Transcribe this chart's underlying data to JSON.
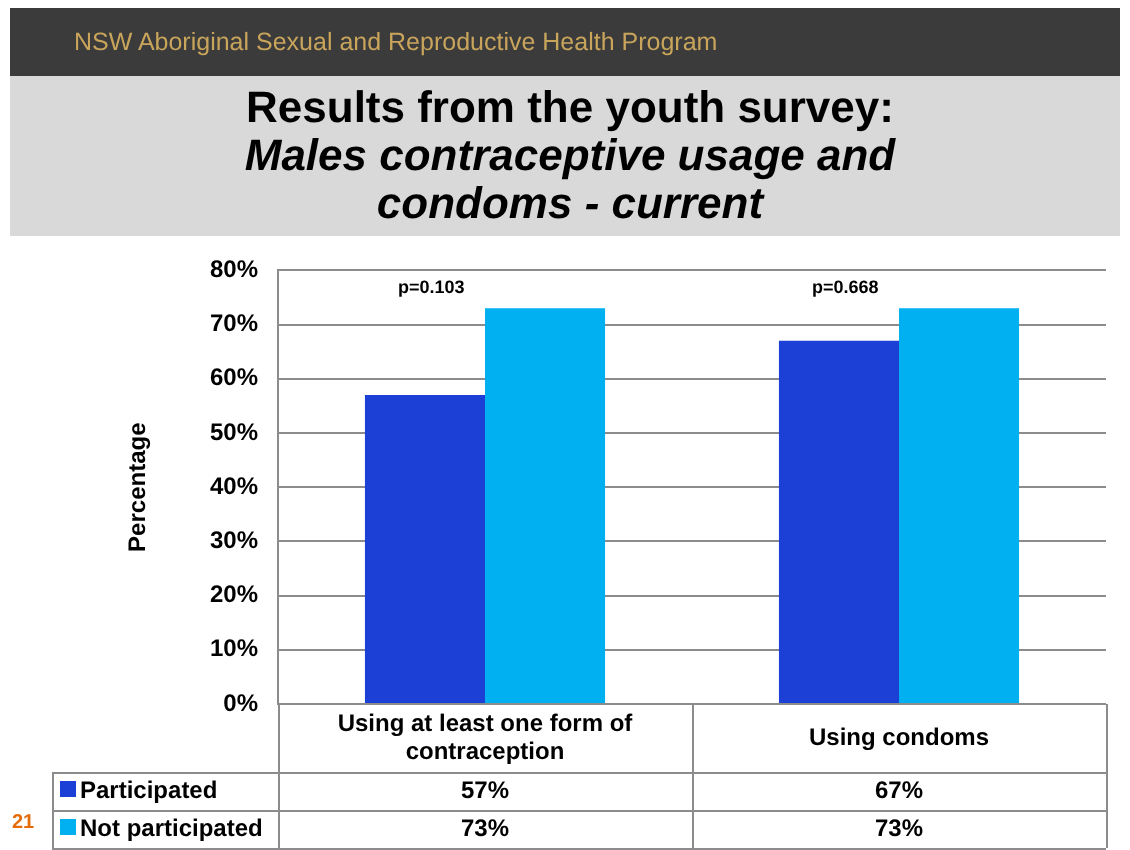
{
  "chart_data": {
    "type": "bar",
    "title": "Results from the youth survey:",
    "subtitle": "Males contraceptive usage and condoms - current",
    "ylabel": "Percentage",
    "categories": [
      "Using at least one form of contraception",
      "Using condoms"
    ],
    "series": [
      {
        "name": "Participated",
        "color": "#1c3fd6",
        "values": [
          57,
          67
        ],
        "value_labels": [
          "57%",
          "67%"
        ]
      },
      {
        "name": "Not participated",
        "color": "#00b0f0",
        "values": [
          73,
          73
        ],
        "value_labels": [
          "73%",
          "73%"
        ]
      }
    ],
    "ylim": [
      0,
      80
    ],
    "yticks": [
      {
        "value": 0,
        "label": "0%"
      },
      {
        "value": 10,
        "label": "10%"
      },
      {
        "value": 20,
        "label": "20%"
      },
      {
        "value": 30,
        "label": "30%"
      },
      {
        "value": 40,
        "label": "40%"
      },
      {
        "value": 50,
        "label": "50%"
      },
      {
        "value": 60,
        "label": "60%"
      },
      {
        "value": 70,
        "label": "70%"
      },
      {
        "value": 80,
        "label": "80%"
      }
    ],
    "grid": "y",
    "legend": "bottom left",
    "annotations": [
      "NSW Aboriginal Sexual and Reproductive Health Program",
      "p=0.103",
      "p=0.668",
      "21"
    ]
  }
}
